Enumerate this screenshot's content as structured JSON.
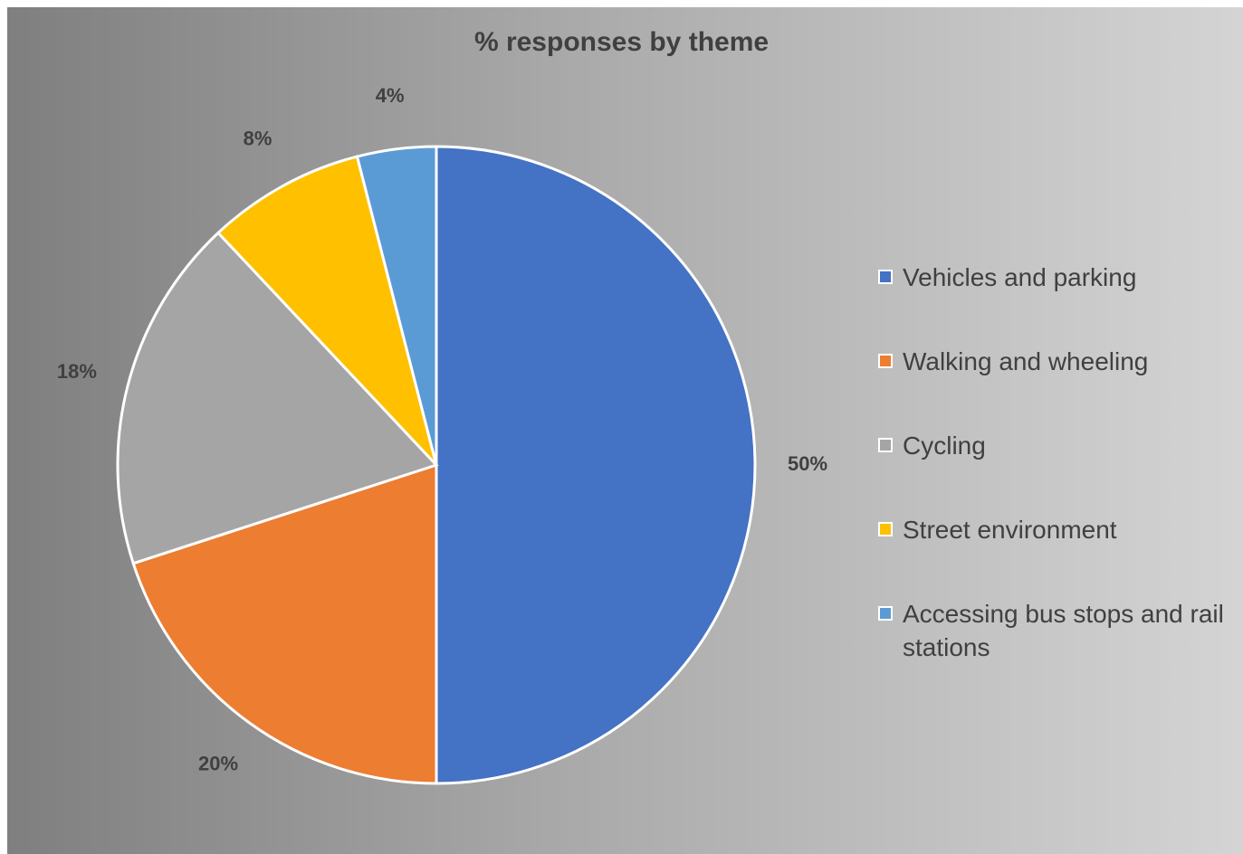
{
  "chart_data": {
    "type": "pie",
    "title": "% responses by theme",
    "categories": [
      "Vehicles and parking",
      "Walking and wheeling",
      "Cycling",
      "Street environment",
      "Accessing bus stops and rail stations"
    ],
    "values": [
      50,
      20,
      18,
      8,
      4
    ],
    "value_labels": [
      "50%",
      "20%",
      "18%",
      "8%",
      "4%"
    ],
    "colors": [
      "#4472c4",
      "#ed7d31",
      "#a5a5a5",
      "#ffc000",
      "#5b9bd5"
    ],
    "legend_position": "right"
  }
}
